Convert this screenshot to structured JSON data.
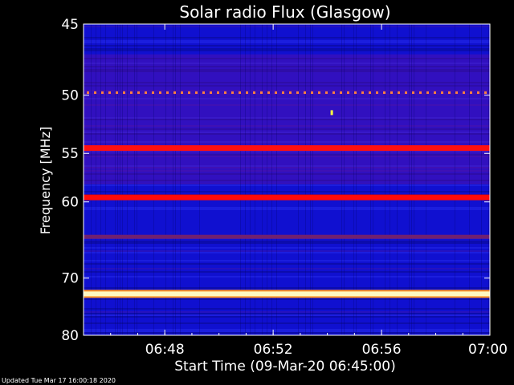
{
  "chart_data": {
    "type": "heatmap",
    "title": "Solar radio Flux (Glasgow)",
    "xlabel": "Start Time (09-Mar-20 06:45:00)",
    "ylabel": "Frequency [MHz]",
    "xlim": [
      "06:45",
      "07:00"
    ],
    "ylim": [
      45,
      80
    ],
    "y_reversed": true,
    "x_ticks": [
      "06:48",
      "06:52",
      "06:56",
      "07:00"
    ],
    "y_ticks": [
      45,
      50,
      55,
      60,
      70,
      80
    ],
    "colormap": [
      "#1010d0",
      "#6010a0",
      "#c01040",
      "#ff2010",
      "#ffff60",
      "#ffffff"
    ],
    "features": [
      {
        "freq_mhz": 49.8,
        "kind": "dotted",
        "color": "#ff8040"
      },
      {
        "freq_mhz": 51.4,
        "kind": "burst",
        "time": "06:54",
        "color": "#ffff40"
      },
      {
        "freq_mhz": 54.5,
        "kind": "band",
        "intensity": "high",
        "color": "#ff1010"
      },
      {
        "freq_mhz": 59.5,
        "kind": "band",
        "intensity": "high",
        "color": "#ff0a0a"
      },
      {
        "freq_mhz": 64.2,
        "kind": "band",
        "intensity": "medium",
        "color": "#702070"
      },
      {
        "freq_mhz": 72.5,
        "kind": "band",
        "intensity": "max",
        "color": "#fff8c0"
      }
    ]
  },
  "footer": {
    "updated": "Updated Tue Mar 17 16:00:18 2020"
  }
}
